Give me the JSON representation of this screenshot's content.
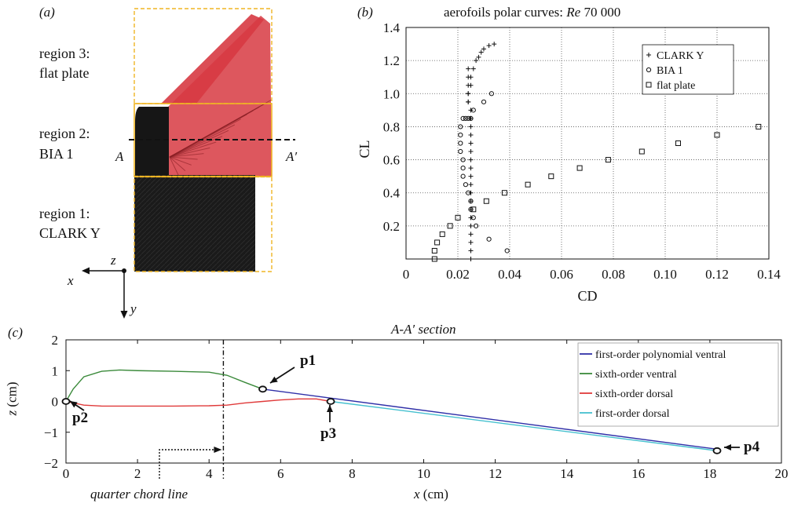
{
  "panel_a": {
    "tag": "(a)",
    "regions": [
      {
        "line1": "region 3:",
        "line2": "flat plate"
      },
      {
        "line1": "region 2:",
        "line2": "BIA 1"
      },
      {
        "line1": "region 1:",
        "line2": "CLARK Y"
      }
    ],
    "section_left": "A",
    "section_right": "A′",
    "axes": {
      "x": "x",
      "y": "y",
      "z": "z"
    },
    "colors": {
      "wing_red": "#d73a42",
      "wing_black": "#161616",
      "box_yellow": "#f0b524"
    }
  },
  "chart_data": [
    {
      "id": "panel_b",
      "tag": "(b)",
      "type": "scatter",
      "title_prefix": "aerofoils polar curves: ",
      "title_re": "Re",
      "title_suffix": " 70 000",
      "xlabel": "CD",
      "ylabel": "CL",
      "xlim": [
        0,
        0.14
      ],
      "ylim": [
        0,
        1.4
      ],
      "xticks": [
        0,
        0.02,
        0.04,
        0.06,
        0.08,
        0.1,
        0.12,
        0.14
      ],
      "xtick_labels": [
        "0",
        "0.02",
        "0.04",
        "0.06",
        "0.08",
        "0.10",
        "0.12",
        "0.14"
      ],
      "yticks": [
        0.2,
        0.4,
        0.6,
        0.8,
        1.0,
        1.2,
        1.4
      ],
      "ytick_labels": [
        "0.2",
        "0.4",
        "0.6",
        "0.8",
        "1.0",
        "1.2",
        "1.4"
      ],
      "grid": true,
      "legend_position": "top-right",
      "series": [
        {
          "name": "CLARK Y",
          "marker": "plus",
          "x": [
            0.025,
            0.025,
            0.025,
            0.025,
            0.025,
            0.025,
            0.025,
            0.025,
            0.025,
            0.025,
            0.025,
            0.025,
            0.025,
            0.025,
            0.025,
            0.025,
            0.025,
            0.025,
            0.025,
            0.024,
            0.024,
            0.024,
            0.024,
            0.024,
            0.024,
            0.024,
            0.025,
            0.025,
            0.026,
            0.027,
            0.028,
            0.029,
            0.03,
            0.032,
            0.034
          ],
          "y": [
            0.0,
            0.05,
            0.1,
            0.15,
            0.2,
            0.25,
            0.3,
            0.35,
            0.4,
            0.45,
            0.5,
            0.55,
            0.6,
            0.65,
            0.7,
            0.75,
            0.8,
            0.85,
            0.9,
            0.95,
            1.0,
            1.05,
            1.1,
            1.15,
            1.0,
            0.95,
            1.05,
            1.1,
            1.15,
            1.2,
            1.22,
            1.25,
            1.27,
            1.29,
            1.3
          ]
        },
        {
          "name": "BIA 1",
          "marker": "circle",
          "x": [
            0.039,
            0.032,
            0.027,
            0.026,
            0.025,
            0.025,
            0.024,
            0.023,
            0.022,
            0.022,
            0.022,
            0.021,
            0.021,
            0.021,
            0.021,
            0.022,
            0.023,
            0.024,
            0.025,
            0.026,
            0.03,
            0.033
          ],
          "y": [
            0.05,
            0.12,
            0.2,
            0.25,
            0.3,
            0.35,
            0.4,
            0.45,
            0.5,
            0.55,
            0.6,
            0.65,
            0.7,
            0.75,
            0.8,
            0.85,
            0.85,
            0.85,
            0.85,
            0.9,
            0.95,
            1.0
          ]
        },
        {
          "name": "flat plate",
          "marker": "square",
          "x": [
            0.011,
            0.011,
            0.012,
            0.014,
            0.017,
            0.02,
            0.026,
            0.031,
            0.038,
            0.047,
            0.056,
            0.067,
            0.078,
            0.091,
            0.105,
            0.12,
            0.136
          ],
          "y": [
            0.0,
            0.05,
            0.1,
            0.15,
            0.2,
            0.25,
            0.3,
            0.35,
            0.4,
            0.45,
            0.5,
            0.55,
            0.6,
            0.65,
            0.7,
            0.75,
            0.8
          ]
        }
      ]
    },
    {
      "id": "panel_c",
      "tag": "(c)",
      "type": "line",
      "title": "A-A′ section",
      "xlabel_var": "x",
      "xlabel_unit": " (cm)",
      "ylabel_var": "z",
      "ylabel_unit": " (cm)",
      "xlim": [
        0,
        20
      ],
      "ylim": [
        -2,
        2
      ],
      "xticks": [
        0,
        2,
        4,
        6,
        8,
        10,
        12,
        14,
        16,
        18,
        20
      ],
      "xtick_labels": [
        "0",
        "2",
        "4",
        "6",
        "8",
        "10",
        "12",
        "14",
        "16",
        "18",
        "20"
      ],
      "yticks": [
        -2,
        -1,
        0,
        1,
        2
      ],
      "ytick_labels": [
        "−2",
        "−1",
        "0",
        "1",
        "2"
      ],
      "legend_position": "top-right",
      "series": [
        {
          "name": "first-order polynomial ventral",
          "color": "#3030a8",
          "x": [
            5.5,
            18.2
          ],
          "y": [
            0.4,
            -1.55
          ]
        },
        {
          "name": "sixth-order ventral",
          "color": "#3b8a3b",
          "x": [
            0,
            0.2,
            0.5,
            1,
            1.5,
            2,
            3,
            4,
            4.5,
            5,
            5.5
          ],
          "y": [
            0,
            0.4,
            0.8,
            0.98,
            1.02,
            1.0,
            0.98,
            0.95,
            0.85,
            0.62,
            0.4
          ]
        },
        {
          "name": "sixth-order dorsal",
          "color": "#e03a3a",
          "x": [
            0,
            0.5,
            1,
            2,
            3,
            4,
            4.5,
            5,
            5.5,
            6,
            6.5,
            7,
            7.4
          ],
          "y": [
            0,
            -0.12,
            -0.15,
            -0.15,
            -0.15,
            -0.14,
            -0.12,
            -0.05,
            0,
            0.05,
            0.08,
            0.08,
            0
          ]
        },
        {
          "name": "first-order dorsal",
          "color": "#45c0cf",
          "x": [
            7.4,
            18.2
          ],
          "y": [
            0,
            -1.6
          ]
        }
      ],
      "points": [
        {
          "label": "p1",
          "x": 5.5,
          "y": 0.4
        },
        {
          "label": "p2",
          "x": 0,
          "y": 0
        },
        {
          "label": "p3",
          "x": 7.4,
          "y": 0
        },
        {
          "label": "p4",
          "x": 18.2,
          "y": -1.6
        }
      ],
      "reference_line": {
        "label": "quarter chord line",
        "x": 4.4
      }
    }
  ]
}
